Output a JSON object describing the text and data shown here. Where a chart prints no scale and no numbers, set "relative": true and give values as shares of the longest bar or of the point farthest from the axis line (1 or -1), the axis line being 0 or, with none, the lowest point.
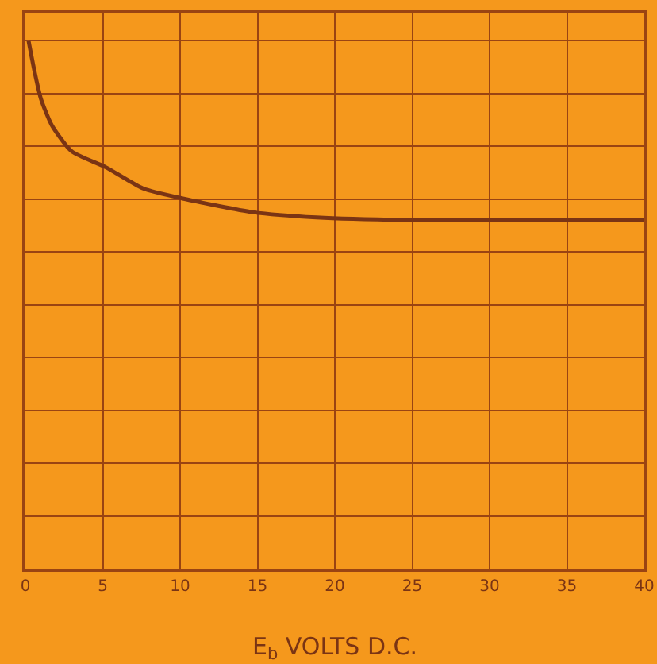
{
  "chart_data": {
    "type": "line",
    "xlabel": "E$_{b}$ VOLTS D.C.",
    "relative": true,
    "x": [
      0.2,
      0.6,
      1,
      1.7,
      3,
      5.2,
      7.6,
      10.3,
      14.7,
      18.8,
      25,
      30,
      40
    ],
    "series": [
      {
        "color": "#7a3414",
        "values": [
          1,
          0.94,
          0.89,
          0.84,
          0.79,
          0.76,
          0.72,
          0.7,
          0.675,
          0.665,
          0.66,
          0.66,
          0.66
        ]
      }
    ],
    "xlim": [
      0,
      40
    ],
    "xticks": [
      0,
      5,
      10,
      15,
      20,
      25,
      30,
      35,
      40
    ],
    "grid": true,
    "legend": false,
    "marker": "none",
    "line_style": "solid"
  }
}
